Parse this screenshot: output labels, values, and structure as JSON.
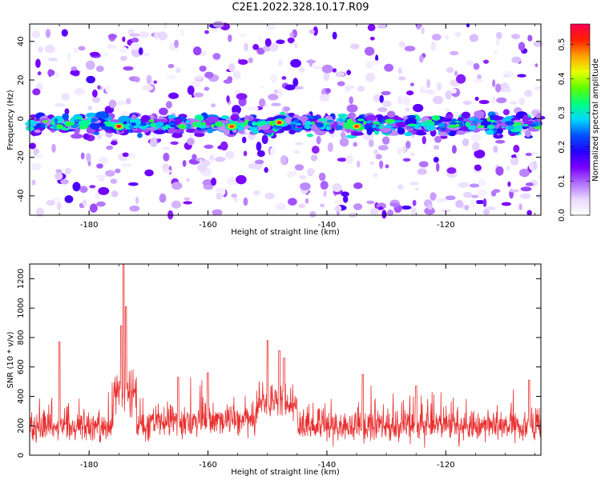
{
  "page_title": "C2E1.2022.328.10.17.R09",
  "chart_data": [
    {
      "type": "heatmap",
      "xlabel": "Height of straight line (km)",
      "ylabel": "Frequency (Hz)",
      "xlim": [
        -190,
        -104
      ],
      "ylim": [
        -50,
        49
      ],
      "x_ticks": [
        -180,
        -160,
        -140,
        -120
      ],
      "y_ticks": [
        -40,
        -20,
        0,
        20,
        40
      ],
      "colorbar": {
        "label": "Normalized spectral amplitude",
        "range": [
          0,
          0.56
        ],
        "ticks": [
          0.0,
          0.1,
          0.2,
          0.3,
          0.4,
          0.5
        ],
        "colors": [
          "#ffffff",
          "#e8d8ff",
          "#b070ff",
          "#7a00ff",
          "#2400ff",
          "#0050ff",
          "#00d8ff",
          "#00ff80",
          "#60ff00",
          "#e8ff00",
          "#ffa000",
          "#ff2000",
          "#ff0050"
        ]
      },
      "band": {
        "center_hz": -3,
        "half_width_hz": 6
      },
      "hotspots": [
        {
          "x": -175,
          "y": -4,
          "value": 0.55
        },
        {
          "x": -156,
          "y": -4,
          "value": 0.5
        },
        {
          "x": -148,
          "y": -2,
          "value": 0.55
        },
        {
          "x": -135,
          "y": -4,
          "value": 0.5
        }
      ]
    },
    {
      "type": "line",
      "xlabel": "Height of straight line (km)",
      "ylabel": "SNR (10 * v/v)",
      "xlim": [
        -190,
        -104
      ],
      "ylim": [
        0,
        1300
      ],
      "x_ticks": [
        -180,
        -160,
        -140,
        -120
      ],
      "y_ticks": [
        0,
        200,
        400,
        600,
        800,
        1000,
        1200
      ],
      "series": [
        {
          "color": "#e83030",
          "baseline": 200,
          "spread": 90
        }
      ],
      "peaks": [
        {
          "x": -185,
          "y": 770
        },
        {
          "x": -174.2,
          "y": 1300
        },
        {
          "x": -173.8,
          "y": 1010
        },
        {
          "x": -174.6,
          "y": 880
        },
        {
          "x": -150,
          "y": 780
        },
        {
          "x": -148,
          "y": 710
        },
        {
          "x": -147.2,
          "y": 660
        },
        {
          "x": -165,
          "y": 530
        },
        {
          "x": -160,
          "y": 560
        },
        {
          "x": -134,
          "y": 550
        },
        {
          "x": -125,
          "y": 470
        },
        {
          "x": -106,
          "y": 510
        }
      ]
    }
  ]
}
